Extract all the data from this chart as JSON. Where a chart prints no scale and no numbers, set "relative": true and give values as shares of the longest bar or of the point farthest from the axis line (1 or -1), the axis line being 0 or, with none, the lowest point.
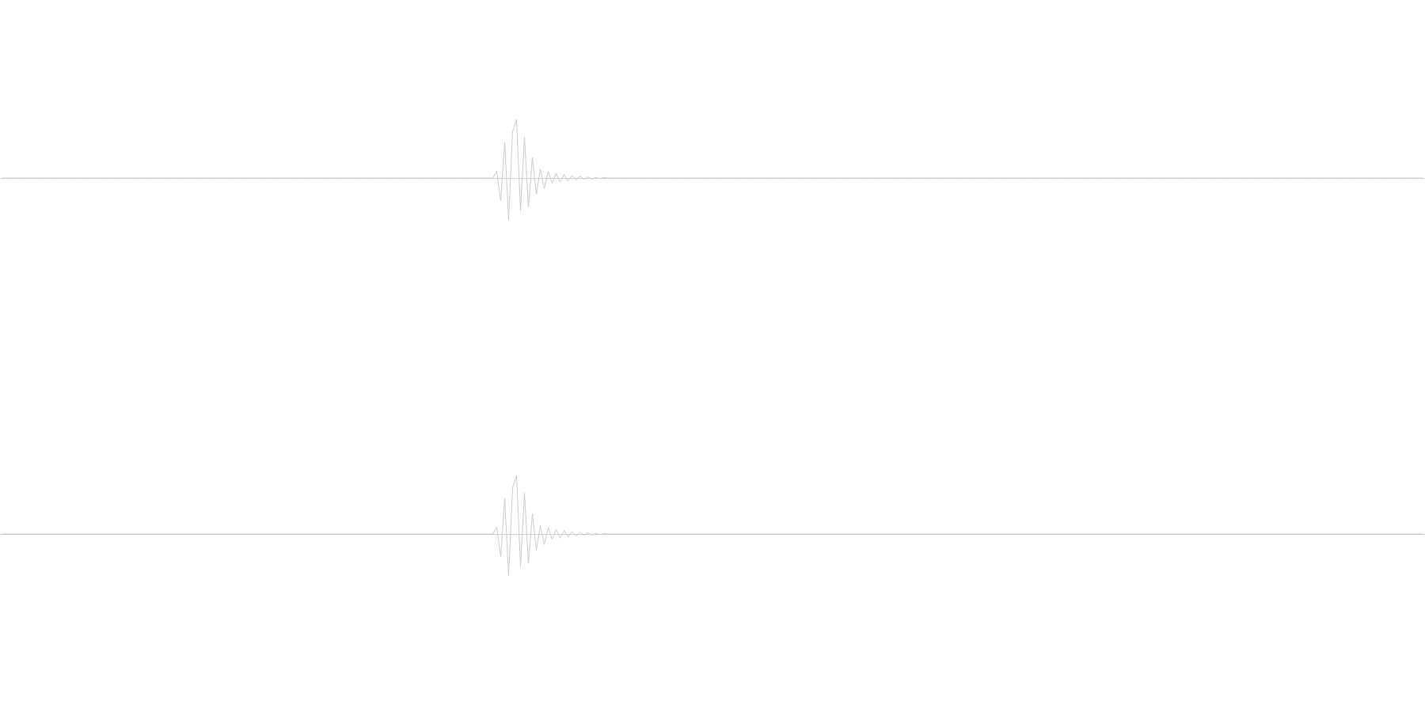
{
  "chart_data": [
    {
      "type": "line",
      "relative": true,
      "marker": "none",
      "line_style": "solid",
      "categories": [
        null,
        null,
        null,
        null,
        null,
        null,
        null,
        null,
        null,
        null,
        null,
        null,
        null,
        null,
        null,
        null,
        null,
        null,
        null,
        null,
        null,
        null,
        null,
        null,
        null,
        null,
        null,
        null,
        null,
        null,
        null,
        null,
        null,
        null,
        null,
        null,
        null,
        null,
        null,
        null,
        null,
        null,
        null,
        null,
        null,
        null,
        null,
        null,
        null,
        null,
        null,
        null,
        null,
        null,
        null,
        null,
        null,
        null,
        null,
        null,
        null,
        null,
        null,
        null,
        null,
        null,
        null,
        null,
        null,
        null,
        null,
        null,
        null,
        null,
        null,
        null,
        null,
        null,
        null,
        null,
        null,
        null,
        null,
        null,
        null,
        null,
        null,
        null,
        null,
        null,
        null,
        null,
        null,
        null,
        null,
        null,
        null,
        null,
        null,
        null,
        null,
        null,
        null,
        null,
        null,
        null,
        null,
        null,
        null,
        null,
        null,
        null,
        null,
        null,
        null,
        null,
        null,
        null,
        null,
        null,
        null,
        null,
        null,
        null,
        null,
        null,
        null,
        null,
        null,
        null,
        null,
        null,
        null,
        null,
        null,
        null,
        null,
        null,
        null,
        null,
        null,
        null,
        null,
        null,
        null,
        null,
        null,
        null,
        null,
        null,
        null,
        null,
        null,
        null,
        null,
        null,
        null,
        null,
        null,
        null,
        null,
        null,
        null,
        null,
        null,
        null,
        null,
        null,
        null,
        null,
        null,
        null,
        null,
        null,
        null,
        null,
        null,
        null,
        null,
        null,
        null,
        null,
        null,
        null,
        null,
        null,
        null,
        null,
        null,
        null,
        null,
        null,
        null,
        null,
        null,
        null,
        null,
        null,
        null,
        null,
        null,
        null,
        null,
        null,
        null,
        null,
        null,
        null,
        null,
        null,
        null,
        null,
        null,
        null,
        null,
        null,
        null,
        null,
        null,
        null,
        null,
        null,
        null,
        null,
        null,
        null,
        null,
        null,
        null,
        null,
        null,
        null,
        null,
        null,
        null,
        null,
        null,
        null,
        null,
        null,
        null,
        null,
        null,
        null,
        null,
        null,
        null,
        null,
        null,
        null,
        null,
        null,
        null,
        null,
        null,
        null,
        null,
        null,
        null,
        null,
        null,
        null,
        null,
        null,
        null,
        null,
        null,
        null,
        null,
        null,
        null,
        null,
        null,
        null,
        null,
        null,
        null,
        null,
        null,
        null,
        null,
        null,
        null,
        null,
        null,
        null,
        null,
        null,
        null,
        null,
        null,
        null,
        null,
        null,
        null,
        null,
        null,
        null,
        null,
        null,
        null,
        null,
        null,
        null,
        null,
        null,
        null,
        null,
        null,
        null,
        null,
        null,
        null,
        null,
        null,
        null,
        null,
        null,
        null,
        null,
        null,
        null,
        null,
        null,
        null,
        null,
        null,
        null,
        null,
        null,
        null,
        null,
        null,
        null,
        null,
        null,
        null,
        null,
        null,
        null,
        null,
        null,
        null,
        null,
        null,
        null,
        null,
        null,
        null,
        null,
        null,
        null,
        null,
        null,
        null,
        null,
        null,
        null,
        null,
        null
      ],
      "series": [
        {
          "color": "#cccccc",
          "values": [
            0,
            0,
            0,
            0,
            0,
            0,
            0,
            0,
            0,
            0,
            0,
            0,
            0,
            0,
            0,
            0,
            0,
            0,
            0,
            0,
            0,
            0,
            0,
            0,
            0,
            0,
            0,
            0,
            0,
            0,
            0,
            0,
            0,
            0,
            0,
            0,
            0,
            0,
            0,
            0,
            0,
            0,
            0,
            0,
            0,
            0,
            0,
            0,
            0,
            0,
            0,
            0,
            0,
            0,
            0,
            0,
            0,
            0,
            0,
            0,
            0,
            0,
            0,
            0,
            0,
            0,
            0,
            0,
            0,
            0,
            0,
            0,
            0,
            0,
            0,
            0,
            0,
            0,
            0,
            0,
            0,
            0,
            0,
            0,
            0,
            0,
            0,
            0,
            0,
            0,
            0,
            0,
            0,
            0,
            0,
            0,
            0,
            0,
            0,
            0,
            0,
            0,
            0,
            0,
            0,
            0,
            0,
            0,
            0,
            0,
            0,
            0,
            0,
            0,
            0,
            0,
            0,
            0,
            0,
            0,
            0,
            0,
            0,
            0,
            0,
            0.12,
            -0.39,
            0.61,
            -0.72,
            0.8,
            1.0,
            -0.55,
            0.7,
            -0.5,
            0.35,
            -0.28,
            0.15,
            -0.18,
            0.11,
            -0.09,
            0.08,
            -0.07,
            0.06,
            -0.05,
            0.04,
            -0.03,
            0.03,
            -0.02,
            0.02,
            -0.02,
            0.01,
            -0.01,
            0.01,
            0,
            0,
            0,
            0,
            0,
            0,
            0,
            0,
            0,
            0,
            0,
            0,
            0,
            0,
            0,
            0,
            0,
            0,
            0,
            0,
            0,
            0,
            0,
            0,
            0,
            0,
            0,
            0,
            0,
            0,
            0,
            0,
            0,
            0,
            0,
            0,
            0,
            0,
            0,
            0,
            0,
            0,
            0,
            0,
            0,
            0,
            0,
            0,
            0,
            0,
            0,
            0,
            0,
            0,
            0,
            0,
            0,
            0,
            0,
            0,
            0,
            0,
            0,
            0,
            0,
            0,
            0,
            0,
            0,
            0,
            0,
            0,
            0,
            0,
            0,
            0,
            0,
            0,
            0,
            0,
            0,
            0,
            0,
            0,
            0,
            0,
            0,
            0,
            0,
            0,
            0,
            0,
            0,
            0,
            0,
            0,
            0,
            0,
            0,
            0,
            0,
            0,
            0,
            0,
            0,
            0,
            0,
            0,
            0,
            0,
            0,
            0,
            0,
            0,
            0,
            0,
            0,
            0,
            0,
            0,
            0,
            0,
            0,
            0,
            0,
            0,
            0,
            0,
            0,
            0,
            0,
            0,
            0,
            0,
            0,
            0,
            0,
            0,
            0,
            0,
            0,
            0,
            0,
            0,
            0,
            0,
            0,
            0,
            0,
            0,
            0,
            0,
            0,
            0,
            0,
            0,
            0,
            0,
            0,
            0,
            0,
            0,
            0,
            0,
            0,
            0,
            0,
            0,
            0,
            0,
            0,
            0,
            0,
            0,
            0,
            0,
            0,
            0,
            0,
            0,
            0,
            0,
            0,
            0,
            0,
            0,
            0,
            0,
            0,
            0,
            0,
            0,
            0,
            0,
            0,
            0,
            0,
            0,
            0,
            0,
            0,
            0,
            0,
            0,
            0,
            0,
            0
          ]
        }
      ]
    },
    {
      "type": "line",
      "relative": true,
      "marker": "none",
      "line_style": "solid",
      "categories": [
        null,
        null,
        null,
        null,
        null,
        null,
        null,
        null,
        null,
        null,
        null,
        null,
        null,
        null,
        null,
        null,
        null,
        null,
        null,
        null,
        null,
        null,
        null,
        null,
        null,
        null,
        null,
        null,
        null,
        null,
        null,
        null,
        null,
        null,
        null,
        null,
        null,
        null,
        null,
        null,
        null,
        null,
        null,
        null,
        null,
        null,
        null,
        null,
        null,
        null,
        null,
        null,
        null,
        null,
        null,
        null,
        null,
        null,
        null,
        null,
        null,
        null,
        null,
        null,
        null,
        null,
        null,
        null,
        null,
        null,
        null,
        null,
        null,
        null,
        null,
        null,
        null,
        null,
        null,
        null,
        null,
        null,
        null,
        null,
        null,
        null,
        null,
        null,
        null,
        null,
        null,
        null,
        null,
        null,
        null,
        null,
        null,
        null,
        null,
        null,
        null,
        null,
        null,
        null,
        null,
        null,
        null,
        null,
        null,
        null,
        null,
        null,
        null,
        null,
        null,
        null,
        null,
        null,
        null,
        null,
        null,
        null,
        null,
        null,
        null,
        null,
        null,
        null,
        null,
        null,
        null,
        null,
        null,
        null,
        null,
        null,
        null,
        null,
        null,
        null,
        null,
        null,
        null,
        null,
        null,
        null,
        null,
        null,
        null,
        null,
        null,
        null,
        null,
        null,
        null,
        null,
        null,
        null,
        null,
        null,
        null,
        null,
        null,
        null,
        null,
        null,
        null,
        null,
        null,
        null,
        null,
        null,
        null,
        null,
        null,
        null,
        null,
        null,
        null,
        null,
        null,
        null,
        null,
        null,
        null,
        null,
        null,
        null,
        null,
        null,
        null,
        null,
        null,
        null,
        null,
        null,
        null,
        null,
        null,
        null,
        null,
        null,
        null,
        null,
        null,
        null,
        null,
        null,
        null,
        null,
        null,
        null,
        null,
        null,
        null,
        null,
        null,
        null,
        null,
        null,
        null,
        null,
        null,
        null,
        null,
        null,
        null,
        null,
        null,
        null,
        null,
        null,
        null,
        null,
        null,
        null,
        null,
        null,
        null,
        null,
        null,
        null,
        null,
        null,
        null,
        null,
        null,
        null,
        null,
        null,
        null,
        null,
        null,
        null,
        null,
        null,
        null,
        null,
        null,
        null,
        null,
        null,
        null,
        null,
        null,
        null,
        null,
        null,
        null,
        null,
        null,
        null,
        null,
        null,
        null,
        null,
        null,
        null,
        null,
        null,
        null,
        null,
        null,
        null,
        null,
        null,
        null,
        null,
        null,
        null,
        null,
        null,
        null,
        null,
        null,
        null,
        null,
        null,
        null,
        null,
        null,
        null,
        null,
        null,
        null,
        null,
        null,
        null,
        null,
        null,
        null,
        null,
        null,
        null,
        null,
        null,
        null,
        null,
        null,
        null,
        null,
        null,
        null,
        null,
        null,
        null,
        null,
        null,
        null,
        null,
        null,
        null,
        null,
        null,
        null,
        null,
        null,
        null,
        null,
        null,
        null,
        null,
        null,
        null,
        null,
        null,
        null,
        null,
        null,
        null,
        null,
        null,
        null,
        null,
        null,
        null,
        null,
        null,
        null,
        null
      ],
      "series": [
        {
          "color": "#cccccc",
          "values": [
            0,
            0,
            0,
            0,
            0,
            0,
            0,
            0,
            0,
            0,
            0,
            0,
            0,
            0,
            0,
            0,
            0,
            0,
            0,
            0,
            0,
            0,
            0,
            0,
            0,
            0,
            0,
            0,
            0,
            0,
            0,
            0,
            0,
            0,
            0,
            0,
            0,
            0,
            0,
            0,
            0,
            0,
            0,
            0,
            0,
            0,
            0,
            0,
            0,
            0,
            0,
            0,
            0,
            0,
            0,
            0,
            0,
            0,
            0,
            0,
            0,
            0,
            0,
            0,
            0,
            0,
            0,
            0,
            0,
            0,
            0,
            0,
            0,
            0,
            0,
            0,
            0,
            0,
            0,
            0,
            0,
            0,
            0,
            0,
            0,
            0,
            0,
            0,
            0,
            0,
            0,
            0,
            0,
            0,
            0,
            0,
            0,
            0,
            0,
            0,
            0,
            0,
            0,
            0,
            0,
            0,
            0,
            0,
            0,
            0,
            0,
            0,
            0,
            0,
            0,
            0,
            0,
            0,
            0,
            0,
            0,
            0,
            0,
            0,
            0,
            0.12,
            -0.39,
            0.61,
            -0.72,
            0.8,
            1.0,
            -0.55,
            0.7,
            -0.5,
            0.35,
            -0.28,
            0.15,
            -0.18,
            0.11,
            -0.09,
            0.08,
            -0.07,
            0.06,
            -0.05,
            0.04,
            -0.03,
            0.03,
            -0.02,
            0.02,
            -0.02,
            0.01,
            -0.01,
            0.01,
            0,
            0,
            0,
            0,
            0,
            0,
            0,
            0,
            0,
            0,
            0,
            0,
            0,
            0,
            0,
            0,
            0,
            0,
            0,
            0,
            0,
            0,
            0,
            0,
            0,
            0,
            0,
            0,
            0,
            0,
            0,
            0,
            0,
            0,
            0,
            0,
            0,
            0,
            0,
            0,
            0,
            0,
            0,
            0,
            0,
            0,
            0,
            0,
            0,
            0,
            0,
            0,
            0,
            0,
            0,
            0,
            0,
            0,
            0,
            0,
            0,
            0,
            0,
            0,
            0,
            0,
            0,
            0,
            0,
            0,
            0,
            0,
            0,
            0,
            0,
            0,
            0,
            0,
            0,
            0,
            0,
            0,
            0,
            0,
            0,
            0,
            0,
            0,
            0,
            0,
            0,
            0,
            0,
            0,
            0,
            0,
            0,
            0,
            0,
            0,
            0,
            0,
            0,
            0,
            0,
            0,
            0,
            0,
            0,
            0,
            0,
            0,
            0,
            0,
            0,
            0,
            0,
            0,
            0,
            0,
            0,
            0,
            0,
            0,
            0,
            0,
            0,
            0,
            0,
            0,
            0,
            0,
            0,
            0,
            0,
            0,
            0,
            0,
            0,
            0,
            0,
            0,
            0,
            0,
            0,
            0,
            0,
            0,
            0,
            0,
            0,
            0,
            0,
            0,
            0,
            0,
            0,
            0,
            0,
            0,
            0,
            0,
            0,
            0,
            0,
            0,
            0,
            0,
            0,
            0,
            0,
            0,
            0,
            0,
            0,
            0,
            0,
            0,
            0,
            0,
            0,
            0,
            0,
            0,
            0,
            0,
            0,
            0,
            0,
            0,
            0,
            0,
            0,
            0,
            0,
            0,
            0,
            0,
            0,
            0,
            0,
            0,
            0,
            0,
            0,
            0,
            0
          ]
        }
      ]
    }
  ]
}
